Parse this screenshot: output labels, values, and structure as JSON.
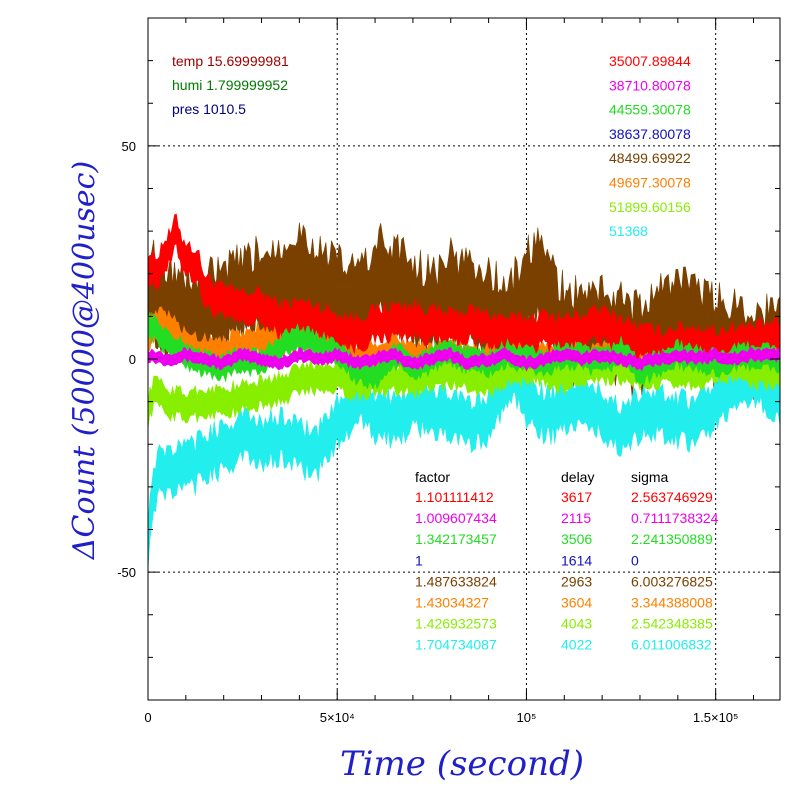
{
  "chart_data": {
    "type": "line",
    "xlabel": "Time (second)",
    "ylabel": "ΔCount (50000@400usec)",
    "xlim": [
      0,
      167000
    ],
    "ylim": [
      -80,
      80
    ],
    "grid": true,
    "x_ticks": [
      {
        "value": 0,
        "label": "0"
      },
      {
        "value": 50000,
        "label": "5×10⁴"
      },
      {
        "value": 100000,
        "label": "10⁵"
      },
      {
        "value": 150000,
        "label": "1.5×10⁵"
      }
    ],
    "y_ticks": [
      {
        "value": 50,
        "label": "50"
      },
      {
        "value": 0,
        "label": "0"
      },
      {
        "value": -50,
        "label": "-50"
      }
    ],
    "env": [
      {
        "label": "temp 15.69999981",
        "color": "#a00000"
      },
      {
        "label": "humi 1.799999952",
        "color": "#007a00"
      },
      {
        "label": "pres 1010.5",
        "color": "#00007a"
      }
    ],
    "stats_header": {
      "factor": "factor",
      "delay": "delay",
      "sigma": "sigma"
    },
    "series": [
      {
        "value": "35007.89844",
        "factor": "1.101111412",
        "delay": "3617",
        "sigma": "2.563746929",
        "color": "#ff0000",
        "band": 7,
        "points": [
          [
            0,
            22
          ],
          [
            2000,
            20
          ],
          [
            4000,
            24
          ],
          [
            6000,
            26
          ],
          [
            7500,
            30
          ],
          [
            9000,
            25
          ],
          [
            11000,
            23
          ],
          [
            13000,
            22
          ],
          [
            15000,
            16
          ],
          [
            20000,
            13
          ],
          [
            25000,
            12
          ],
          [
            30000,
            12
          ],
          [
            35000,
            9
          ],
          [
            40000,
            10
          ],
          [
            45000,
            9
          ],
          [
            50000,
            7
          ],
          [
            55000,
            6
          ],
          [
            60000,
            8
          ],
          [
            65000,
            9
          ],
          [
            70000,
            9
          ],
          [
            75000,
            8
          ],
          [
            80000,
            7
          ],
          [
            85000,
            8
          ],
          [
            90000,
            7
          ],
          [
            95000,
            6
          ],
          [
            100000,
            6
          ],
          [
            105000,
            7
          ],
          [
            110000,
            6
          ],
          [
            115000,
            7
          ],
          [
            120000,
            8
          ],
          [
            125000,
            6
          ],
          [
            130000,
            4
          ],
          [
            135000,
            3
          ],
          [
            140000,
            4
          ],
          [
            145000,
            4
          ],
          [
            150000,
            3
          ],
          [
            155000,
            4
          ],
          [
            160000,
            4
          ],
          [
            167000,
            5
          ]
        ]
      },
      {
        "value": "38710.80078",
        "factor": "1.009607434",
        "delay": "2115",
        "sigma": "0.7111738324",
        "color": "#ee00ee",
        "band": 2.5,
        "points": [
          [
            0,
            1
          ],
          [
            5000,
            0
          ],
          [
            10000,
            1
          ],
          [
            15000,
            0
          ],
          [
            20000,
            -1
          ],
          [
            25000,
            1
          ],
          [
            30000,
            0
          ],
          [
            35000,
            -1
          ],
          [
            40000,
            1
          ],
          [
            45000,
            0
          ],
          [
            50000,
            1
          ],
          [
            55000,
            -1
          ],
          [
            60000,
            0
          ],
          [
            65000,
            1
          ],
          [
            70000,
            -1
          ],
          [
            75000,
            0
          ],
          [
            80000,
            1
          ],
          [
            85000,
            -1
          ],
          [
            90000,
            0
          ],
          [
            95000,
            1
          ],
          [
            100000,
            -1
          ],
          [
            105000,
            0
          ],
          [
            110000,
            1
          ],
          [
            115000,
            0
          ],
          [
            120000,
            1
          ],
          [
            125000,
            0
          ],
          [
            130000,
            -1
          ],
          [
            135000,
            0
          ],
          [
            140000,
            1
          ],
          [
            145000,
            0
          ],
          [
            150000,
            1
          ],
          [
            155000,
            0
          ],
          [
            160000,
            1
          ],
          [
            167000,
            1
          ]
        ]
      },
      {
        "value": "44559.30078",
        "factor": "1.342173457",
        "delay": "3506",
        "sigma": "2.241350889",
        "color": "#22dd22",
        "band": 5,
        "points": [
          [
            0,
            8
          ],
          [
            3000,
            6
          ],
          [
            6000,
            3
          ],
          [
            10000,
            1
          ],
          [
            15000,
            -1
          ],
          [
            20000,
            -2
          ],
          [
            25000,
            0
          ],
          [
            30000,
            -1
          ],
          [
            35000,
            3
          ],
          [
            40000,
            5
          ],
          [
            45000,
            3
          ],
          [
            50000,
            2
          ],
          [
            55000,
            -3
          ],
          [
            60000,
            -4
          ],
          [
            65000,
            1
          ],
          [
            70000,
            -2
          ],
          [
            75000,
            0
          ],
          [
            80000,
            1
          ],
          [
            85000,
            0
          ],
          [
            90000,
            -1
          ],
          [
            95000,
            1
          ],
          [
            100000,
            0
          ],
          [
            105000,
            -1
          ],
          [
            110000,
            1
          ],
          [
            115000,
            0
          ],
          [
            120000,
            -1
          ],
          [
            125000,
            2
          ],
          [
            130000,
            -3
          ],
          [
            135000,
            -1
          ],
          [
            140000,
            1
          ],
          [
            145000,
            0
          ],
          [
            150000,
            -1
          ],
          [
            155000,
            0
          ],
          [
            160000,
            1
          ],
          [
            167000,
            0
          ]
        ]
      },
      {
        "value": "38637.80078",
        "factor": "1",
        "delay": "1614",
        "sigma": "0",
        "color": "#1010c0",
        "band": 0,
        "points": [
          [
            0,
            0
          ],
          [
            167000,
            0
          ]
        ]
      },
      {
        "value": "48499.69922",
        "factor": "1.487633824",
        "delay": "2963",
        "sigma": "6.003276825",
        "color": "#7a4000",
        "band": 18,
        "points": [
          [
            0,
            16
          ],
          [
            5000,
            13
          ],
          [
            10000,
            10
          ],
          [
            15000,
            10
          ],
          [
            20000,
            12
          ],
          [
            25000,
            14
          ],
          [
            30000,
            16
          ],
          [
            35000,
            18
          ],
          [
            40000,
            21
          ],
          [
            45000,
            17
          ],
          [
            50000,
            14
          ],
          [
            55000,
            12
          ],
          [
            60000,
            17
          ],
          [
            62000,
            19
          ],
          [
            65000,
            18
          ],
          [
            70000,
            14
          ],
          [
            75000,
            11
          ],
          [
            80000,
            15
          ],
          [
            85000,
            14
          ],
          [
            90000,
            11
          ],
          [
            95000,
            8
          ],
          [
            100000,
            15
          ],
          [
            103000,
            20
          ],
          [
            106000,
            13
          ],
          [
            110000,
            7
          ],
          [
            115000,
            6
          ],
          [
            120000,
            8
          ],
          [
            125000,
            5
          ],
          [
            130000,
            3
          ],
          [
            135000,
            7
          ],
          [
            140000,
            11
          ],
          [
            145000,
            7
          ],
          [
            150000,
            5
          ],
          [
            155000,
            4
          ],
          [
            160000,
            3
          ],
          [
            167000,
            2
          ]
        ]
      },
      {
        "value": "49697.30078",
        "factor": "1.43034327",
        "delay": "3604",
        "sigma": "3.344388008",
        "color": "#ff8000",
        "band": 6,
        "points": [
          [
            0,
            6
          ],
          [
            3000,
            8
          ],
          [
            6000,
            7
          ],
          [
            10000,
            3
          ],
          [
            15000,
            2
          ],
          [
            20000,
            2
          ],
          [
            25000,
            3
          ],
          [
            30000,
            5
          ],
          [
            35000,
            4
          ],
          [
            40000,
            6
          ],
          [
            45000,
            5
          ],
          [
            50000,
            3
          ],
          [
            55000,
            0
          ],
          [
            60000,
            1
          ],
          [
            65000,
            2
          ],
          [
            70000,
            1
          ],
          [
            75000,
            0
          ],
          [
            80000,
            1
          ],
          [
            85000,
            0
          ],
          [
            90000,
            0
          ],
          [
            95000,
            1
          ],
          [
            100000,
            1
          ],
          [
            105000,
            0
          ],
          [
            110000,
            1
          ],
          [
            115000,
            0
          ],
          [
            120000,
            0
          ],
          [
            125000,
            1
          ],
          [
            130000,
            -2
          ],
          [
            135000,
            -1
          ],
          [
            140000,
            0
          ],
          [
            145000,
            0
          ],
          [
            150000,
            -1
          ],
          [
            155000,
            0
          ],
          [
            160000,
            0
          ],
          [
            167000,
            0
          ]
        ]
      },
      {
        "value": "51899.60156",
        "factor": "1.426932573",
        "delay": "4043",
        "sigma": "2.542348385",
        "color": "#88ee00",
        "band": 6,
        "points": [
          [
            0,
            -12
          ],
          [
            2000,
            -7
          ],
          [
            5000,
            -10
          ],
          [
            10000,
            -11
          ],
          [
            15000,
            -10
          ],
          [
            20000,
            -10
          ],
          [
            25000,
            -9
          ],
          [
            30000,
            -8
          ],
          [
            35000,
            -7
          ],
          [
            40000,
            -5
          ],
          [
            45000,
            -4
          ],
          [
            50000,
            -4
          ],
          [
            55000,
            -6
          ],
          [
            60000,
            -5
          ],
          [
            65000,
            -4
          ],
          [
            70000,
            -5
          ],
          [
            75000,
            -4
          ],
          [
            80000,
            -3
          ],
          [
            85000,
            -4
          ],
          [
            90000,
            -5
          ],
          [
            95000,
            -3
          ],
          [
            100000,
            -2
          ],
          [
            105000,
            -3
          ],
          [
            110000,
            -4
          ],
          [
            115000,
            -3
          ],
          [
            120000,
            -2
          ],
          [
            125000,
            -2
          ],
          [
            130000,
            -4
          ],
          [
            135000,
            -3
          ],
          [
            140000,
            -3
          ],
          [
            145000,
            -3
          ],
          [
            150000,
            -2
          ],
          [
            155000,
            -2
          ],
          [
            160000,
            -3
          ],
          [
            167000,
            -3
          ]
        ]
      },
      {
        "value": "51368",
        "factor": "1.704734087",
        "delay": "4022",
        "sigma": "6.011006832",
        "color": "#22eeee",
        "band": 10,
        "points": [
          [
            0,
            -42
          ],
          [
            1500,
            -30
          ],
          [
            4000,
            -26
          ],
          [
            8000,
            -26
          ],
          [
            12000,
            -25
          ],
          [
            16000,
            -22
          ],
          [
            20000,
            -21
          ],
          [
            25000,
            -18
          ],
          [
            30000,
            -20
          ],
          [
            35000,
            -18
          ],
          [
            40000,
            -20
          ],
          [
            44000,
            -23
          ],
          [
            48000,
            -18
          ],
          [
            52000,
            -12
          ],
          [
            56000,
            -10
          ],
          [
            60000,
            -13
          ],
          [
            65000,
            -14
          ],
          [
            70000,
            -11
          ],
          [
            75000,
            -12
          ],
          [
            80000,
            -13
          ],
          [
            85000,
            -16
          ],
          [
            90000,
            -13
          ],
          [
            93000,
            -8
          ],
          [
            97000,
            -5
          ],
          [
            100000,
            -9
          ],
          [
            105000,
            -13
          ],
          [
            110000,
            -12
          ],
          [
            115000,
            -10
          ],
          [
            120000,
            -13
          ],
          [
            125000,
            -16
          ],
          [
            130000,
            -13
          ],
          [
            135000,
            -12
          ],
          [
            140000,
            -14
          ],
          [
            145000,
            -15
          ],
          [
            150000,
            -11
          ],
          [
            155000,
            -7
          ],
          [
            160000,
            -5
          ],
          [
            163000,
            -6
          ],
          [
            167000,
            -10
          ]
        ]
      }
    ]
  }
}
